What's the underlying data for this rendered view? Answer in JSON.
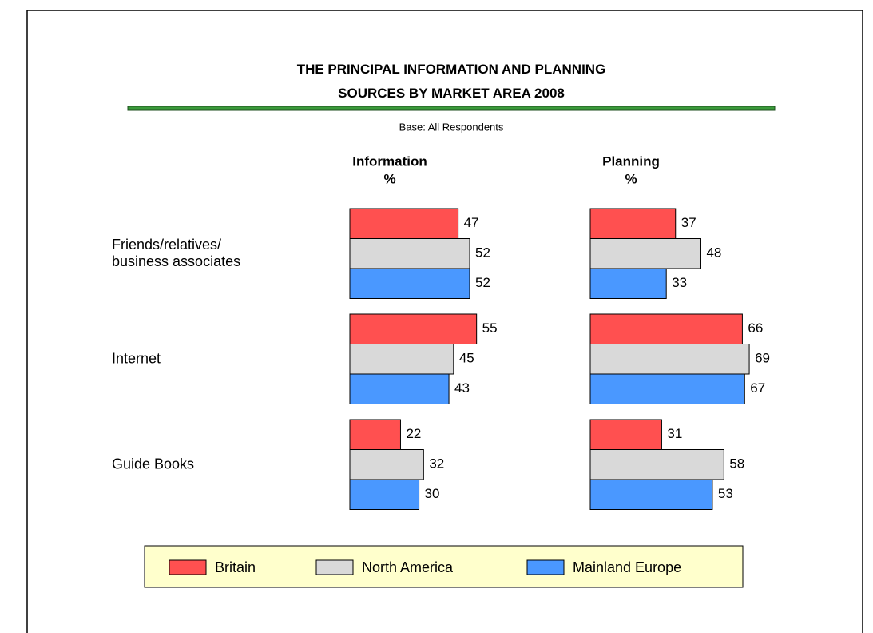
{
  "header": {
    "title": "THE PRINCIPAL INFORMATION AND PLANNING\nSOURCES BY MARKET AREA 2008",
    "subtitle": "Base: All Respondents"
  },
  "chart_data": [
    {
      "type": "bar",
      "orientation": "horizontal",
      "title": "Information",
      "unit": "%",
      "categories": [
        "Friends/relatives/\nbusiness associates",
        "Internet",
        "Guide Books"
      ],
      "series": [
        {
          "name": "Britain",
          "color": "#ff5050",
          "values": [
            47,
            55,
            22
          ]
        },
        {
          "name": "North America",
          "color": "#d9d9d9",
          "values": [
            52,
            45,
            32
          ]
        },
        {
          "name": "Mainland Europe",
          "color": "#4a98ff",
          "values": [
            52,
            43,
            30
          ]
        }
      ]
    },
    {
      "type": "bar",
      "orientation": "horizontal",
      "title": "Planning",
      "unit": "%",
      "categories": [
        "Friends/relatives/\nbusiness associates",
        "Internet",
        "Guide Books"
      ],
      "series": [
        {
          "name": "Britain",
          "color": "#ff5050",
          "values": [
            37,
            66,
            31
          ]
        },
        {
          "name": "North America",
          "color": "#d9d9d9",
          "values": [
            48,
            69,
            58
          ]
        },
        {
          "name": "Mainland Europe",
          "color": "#4a98ff",
          "values": [
            33,
            67,
            53
          ]
        }
      ]
    }
  ],
  "legend": {
    "position": "bottom",
    "background": "#ffffcc"
  }
}
